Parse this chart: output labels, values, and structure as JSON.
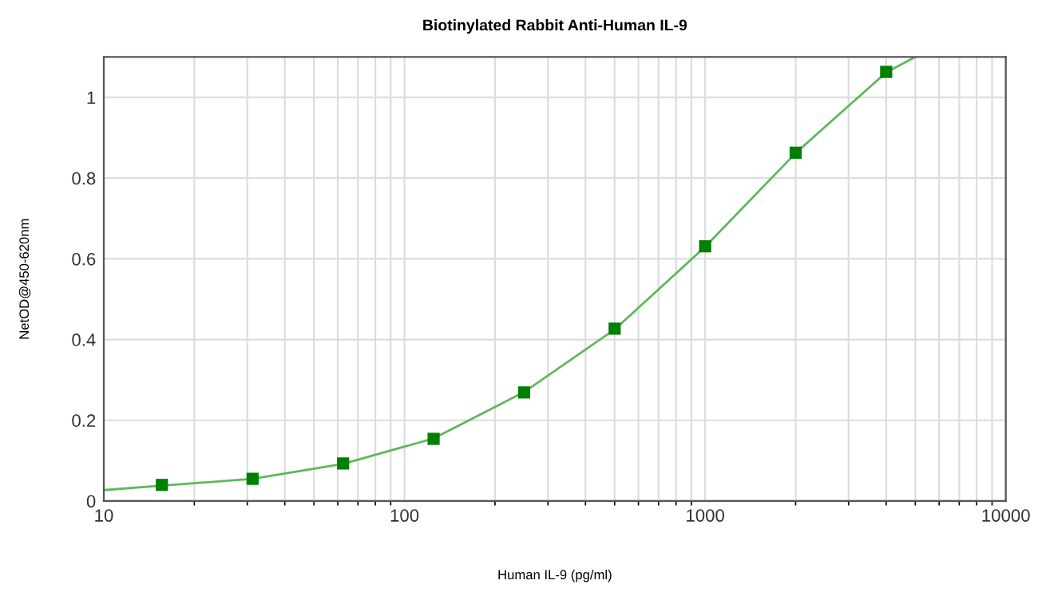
{
  "chart_data": {
    "type": "scatter",
    "title": "Biotinylated Rabbit Anti-Human IL-9",
    "xlabel": "Human IL-9 (pg/ml)",
    "ylabel": "NetOD@450-620nm",
    "log": "x",
    "xlim": [
      10,
      10000
    ],
    "xticks": [
      10,
      100,
      1000,
      10000
    ],
    "ylim": [
      0,
      1.1
    ],
    "yticks": [
      0,
      0.2,
      0.4,
      0.6,
      0.8,
      1
    ],
    "grid": true,
    "series": [
      {
        "type": "line",
        "color": "#5cb85c",
        "marker": "none",
        "x": [
          10,
          15.6,
          31.25,
          62.5,
          125,
          250,
          500,
          1000,
          2000,
          4000,
          5000
        ],
        "values": [
          0.027,
          0.038,
          0.055,
          0.092,
          0.155,
          0.27,
          0.425,
          0.63,
          0.862,
          1.062,
          1.1
        ]
      },
      {
        "color": "#008000",
        "marker": "square",
        "x": [
          15.6,
          31.25,
          62.5,
          125,
          250,
          500,
          1000,
          2000,
          4000
        ],
        "values": [
          0.04,
          0.055,
          0.093,
          0.154,
          0.269,
          0.427,
          0.631,
          0.863,
          1.063
        ]
      }
    ]
  }
}
